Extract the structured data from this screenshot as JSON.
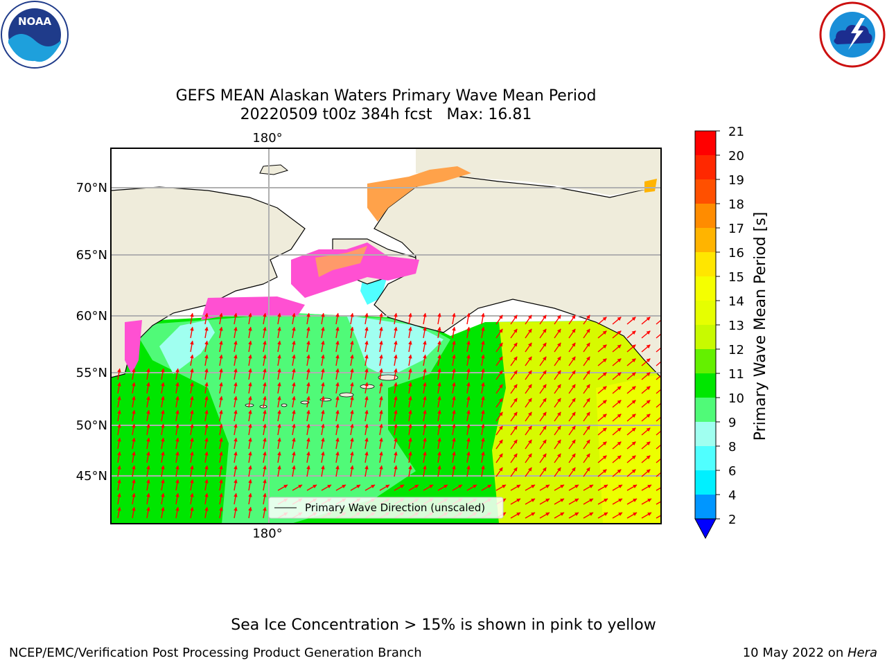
{
  "title": {
    "line1": "GEFS MEAN Alaskan Waters Primary Wave Mean Period",
    "line2": "20220509 t00z 384h fcst   Max: 16.81"
  },
  "map": {
    "lon_label_top": "180°",
    "lon_label_bottom": "180°",
    "lat_labels": [
      "70°N",
      "65°N",
      "60°N",
      "55°N",
      "50°N",
      "45°N"
    ],
    "legend_label": "Primary Wave Direction (unscaled)",
    "vector_color": "#ff0000",
    "land_color": "#efecdb"
  },
  "colorbar": {
    "label": "Primary Wave Mean Period [s]",
    "ticks": [
      "21",
      "20",
      "19",
      "18",
      "17",
      "16",
      "15",
      "14",
      "13",
      "12",
      "11",
      "10",
      "9",
      "8",
      "6",
      "4",
      "2"
    ],
    "colors": [
      "#ff0000",
      "#ff2800",
      "#ff5000",
      "#ff8c00",
      "#ffb400",
      "#ffe600",
      "#f5ff00",
      "#e6ff00",
      "#c8fa00",
      "#64f000",
      "#00e600",
      "#50fa78",
      "#a0fff0",
      "#50ffff",
      "#00f0ff",
      "#0096ff"
    ],
    "under_color": "#0000ff"
  },
  "icons": {
    "noaa": "noaa-logo",
    "nws": "nws-logo"
  },
  "footer": {
    "note": "Sea Ice Concentration > 15% is shown in pink to yellow",
    "left": "NCEP/EMC/Verification Post Processing Product Generation Branch",
    "right_prefix": "10 May 2022 on ",
    "right_host": "Hera"
  }
}
